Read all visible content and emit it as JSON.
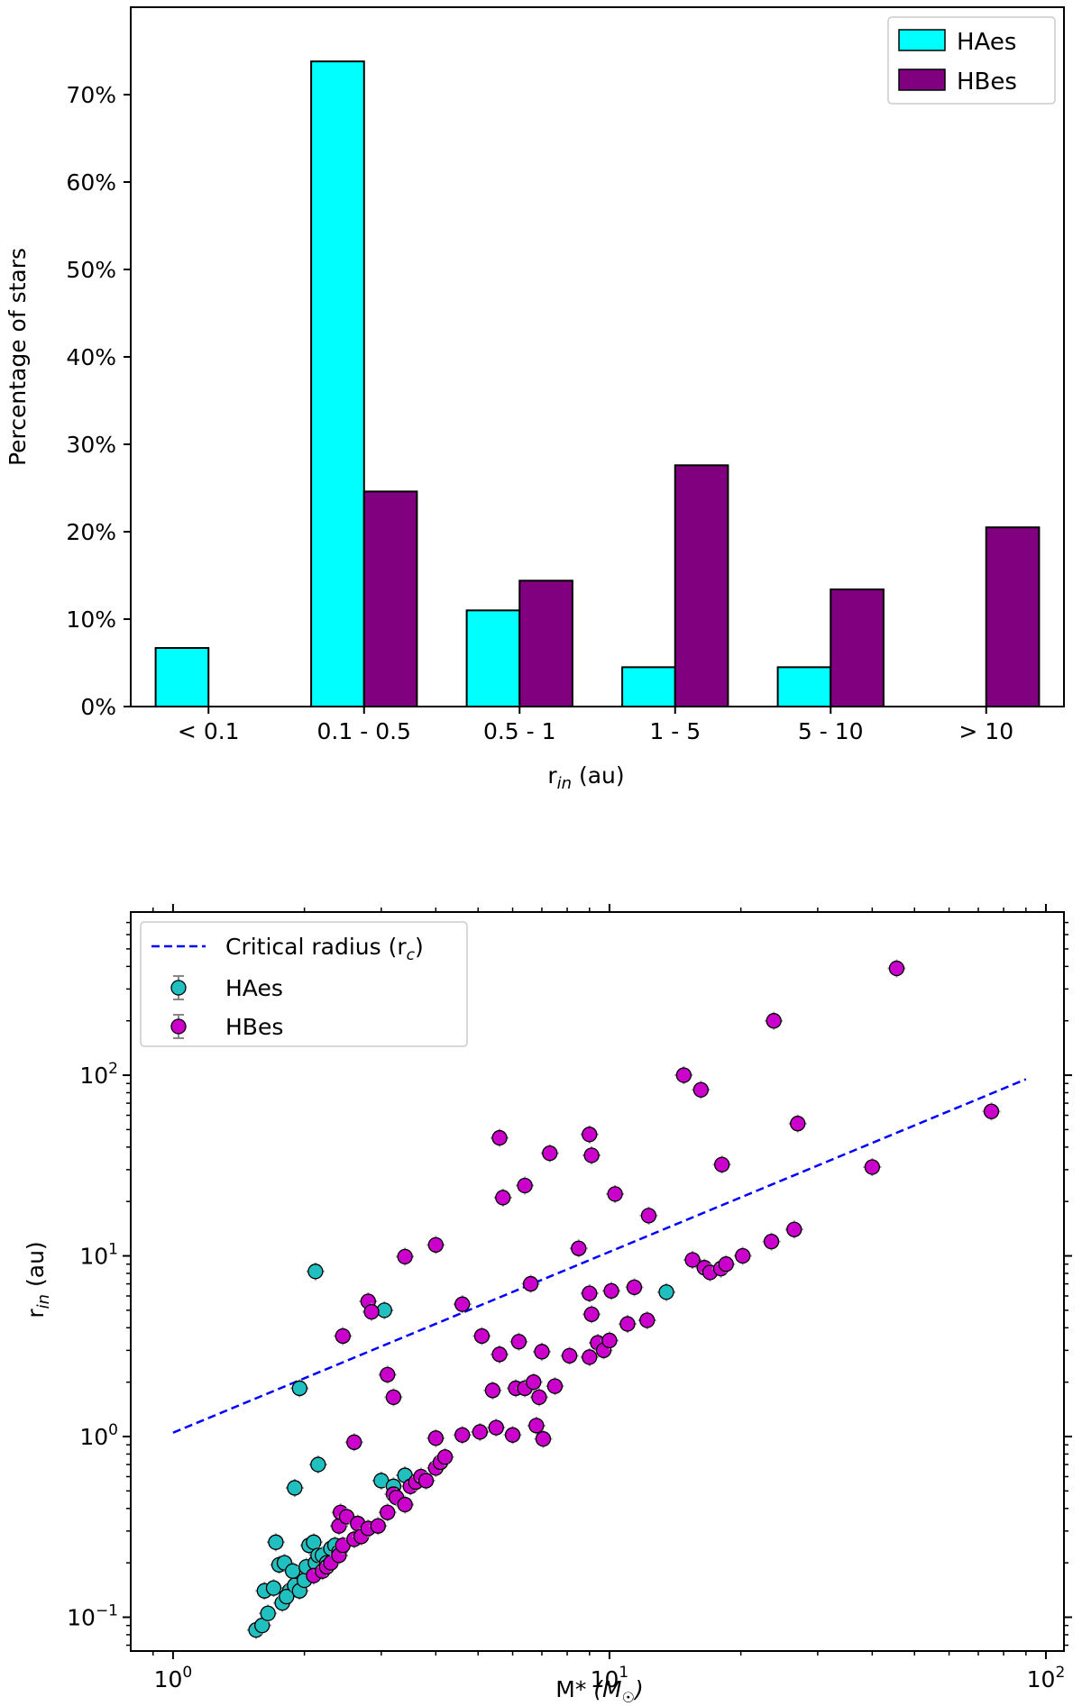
{
  "chart_data": [
    {
      "type": "bar",
      "xlabel": "r",
      "xlabel_sub": "in",
      "xlabel_unit": " (au)",
      "ylabel": "Percentage of stars",
      "ylim": [
        0,
        80
      ],
      "yticks": [
        0,
        10,
        20,
        30,
        40,
        50,
        60,
        70
      ],
      "ytick_labels": [
        "0%",
        "10%",
        "20%",
        "30%",
        "40%",
        "50%",
        "60%",
        "70%"
      ],
      "categories": [
        "< 0.1",
        "0.1 - 0.5",
        "0.5 - 1",
        "1 - 5",
        "5 - 10",
        "> 10"
      ],
      "series": [
        {
          "name": "HAes",
          "color": "#00ffff",
          "values": [
            6.7,
            73.8,
            11.0,
            4.5,
            4.5,
            0.0
          ]
        },
        {
          "name": "HBes",
          "color": "#800080",
          "values": [
            0.0,
            24.6,
            14.4,
            27.6,
            13.4,
            20.5
          ]
        }
      ],
      "legend": "top-right",
      "grid": false
    },
    {
      "type": "scatter",
      "xscale": "log",
      "yscale": "log",
      "xlim": [
        0.8,
        110
      ],
      "ylim": [
        0.065,
        800
      ],
      "xlabel": "M",
      "xlabel_rest": "* (M",
      "xlabel_sun": "☉",
      "xlabel_end": ")",
      "ylabel": "r",
      "ylabel_sub": "in",
      "ylabel_unit": " (au)",
      "xticks": [
        {
          "base": "10",
          "exp": "0",
          "value": 1
        },
        {
          "base": "10",
          "exp": "1",
          "value": 10
        },
        {
          "base": "10",
          "exp": "2",
          "value": 100
        }
      ],
      "yticks": [
        {
          "base": "10",
          "exp": "−1",
          "value": 0.1
        },
        {
          "base": "10",
          "exp": "0",
          "value": 1
        },
        {
          "base": "10",
          "exp": "1",
          "value": 10
        },
        {
          "base": "10",
          "exp": "2",
          "value": 100
        }
      ],
      "legend": "top-left",
      "critical_radius": {
        "label": "Critical radius (r",
        "label_sub": "c",
        "label_end": ")",
        "color": "#0000ff",
        "x": [
          1,
          90
        ],
        "y": [
          1.05,
          95
        ]
      },
      "series": [
        {
          "name": "HAes",
          "color": "#20c0c0",
          "points": [
            [
              1.55,
              0.085
            ],
            [
              1.6,
              0.09
            ],
            [
              1.65,
              0.105
            ],
            [
              1.62,
              0.14
            ],
            [
              1.7,
              0.145
            ],
            [
              1.75,
              0.195
            ],
            [
              1.78,
              0.12
            ],
            [
              1.72,
              0.26
            ],
            [
              1.8,
              0.2
            ],
            [
              1.85,
              0.14
            ],
            [
              1.82,
              0.13
            ],
            [
              1.9,
              0.15
            ],
            [
              1.88,
              0.18
            ],
            [
              1.95,
              0.14
            ],
            [
              2.0,
              0.16
            ],
            [
              2.02,
              0.19
            ],
            [
              2.05,
              0.25
            ],
            [
              2.1,
              0.26
            ],
            [
              2.12,
              0.2
            ],
            [
              2.15,
              0.22
            ],
            [
              2.2,
              0.22
            ],
            [
              2.25,
              0.2
            ],
            [
              2.3,
              0.24
            ],
            [
              2.35,
              0.25
            ],
            [
              2.4,
              0.23
            ],
            [
              1.9,
              0.52
            ],
            [
              2.15,
              0.7
            ],
            [
              1.95,
              1.85
            ],
            [
              2.12,
              8.2
            ],
            [
              3.05,
              5.0
            ],
            [
              3.0,
              0.57
            ],
            [
              3.2,
              0.53
            ],
            [
              3.4,
              0.61
            ],
            [
              13.5,
              6.3
            ]
          ]
        },
        {
          "name": "HBes",
          "color": "#cc00cc",
          "points": [
            [
              2.1,
              0.17
            ],
            [
              2.2,
              0.18
            ],
            [
              2.25,
              0.19
            ],
            [
              2.3,
              0.2
            ],
            [
              2.4,
              0.22
            ],
            [
              2.45,
              0.25
            ],
            [
              2.4,
              0.32
            ],
            [
              2.42,
              0.38
            ],
            [
              2.5,
              0.36
            ],
            [
              2.6,
              0.27
            ],
            [
              2.65,
              0.33
            ],
            [
              2.7,
              0.28
            ],
            [
              2.8,
              0.31
            ],
            [
              2.95,
              0.32
            ],
            [
              3.1,
              0.38
            ],
            [
              3.2,
              0.48
            ],
            [
              3.25,
              0.46
            ],
            [
              3.4,
              0.42
            ],
            [
              3.5,
              0.53
            ],
            [
              3.6,
              0.56
            ],
            [
              3.7,
              0.6
            ],
            [
              3.8,
              0.57
            ],
            [
              4.0,
              0.67
            ],
            [
              4.1,
              0.72
            ],
            [
              4.2,
              0.77
            ],
            [
              2.6,
              0.93
            ],
            [
              4.0,
              0.98
            ],
            [
              4.6,
              1.02
            ],
            [
              5.05,
              1.06
            ],
            [
              5.5,
              1.12
            ],
            [
              6.0,
              1.02
            ],
            [
              6.8,
              1.15
            ],
            [
              7.05,
              0.97
            ],
            [
              2.45,
              3.6
            ],
            [
              2.8,
              5.6
            ],
            [
              2.85,
              4.9
            ],
            [
              3.1,
              2.2
            ],
            [
              3.2,
              1.65
            ],
            [
              3.4,
              9.9
            ],
            [
              4.0,
              11.5
            ],
            [
              4.6,
              5.4
            ],
            [
              5.1,
              3.6
            ],
            [
              5.4,
              1.8
            ],
            [
              5.6,
              2.85
            ],
            [
              6.2,
              3.35
            ],
            [
              6.1,
              1.85
            ],
            [
              6.4,
              1.85
            ],
            [
              6.7,
              2.0
            ],
            [
              6.9,
              1.65
            ],
            [
              7.0,
              2.95
            ],
            [
              7.5,
              1.9
            ],
            [
              8.1,
              2.8
            ],
            [
              8.5,
              11.0
            ],
            [
              9.0,
              6.2
            ],
            [
              9.1,
              4.75
            ],
            [
              9.0,
              2.75
            ],
            [
              9.4,
              3.3
            ],
            [
              9.7,
              3.0
            ],
            [
              10.0,
              3.4
            ],
            [
              10.1,
              6.4
            ],
            [
              11.0,
              4.2
            ],
            [
              11.4,
              6.7
            ],
            [
              12.2,
              4.4
            ],
            [
              12.3,
              16.7
            ],
            [
              15.5,
              9.5
            ],
            [
              16.5,
              8.6
            ],
            [
              17.0,
              8.1
            ],
            [
              18.0,
              8.5
            ],
            [
              18.5,
              9.0
            ],
            [
              20.2,
              10.0
            ],
            [
              23.5,
              12.0
            ],
            [
              26.5,
              14.0
            ],
            [
              5.6,
              45.0
            ],
            [
              5.7,
              21.0
            ],
            [
              6.4,
              24.5
            ],
            [
              6.6,
              7.0
            ],
            [
              7.3,
              37.0
            ],
            [
              9.0,
              47.0
            ],
            [
              9.1,
              36.0
            ],
            [
              10.3,
              22.0
            ],
            [
              14.8,
              100.0
            ],
            [
              16.2,
              83.0
            ],
            [
              18.1,
              32.0
            ],
            [
              23.8,
              200.0
            ],
            [
              27.0,
              54.0
            ],
            [
              40.0,
              31.0
            ],
            [
              45.5,
              390.0
            ],
            [
              75.0,
              63.0
            ]
          ]
        }
      ]
    }
  ]
}
